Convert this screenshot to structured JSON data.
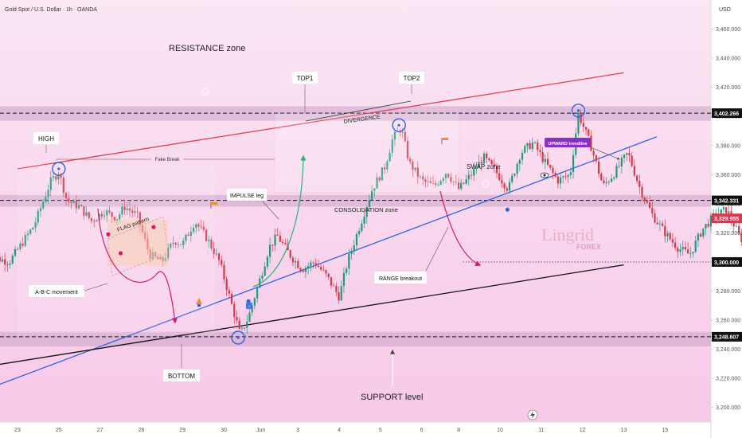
{
  "header": {
    "symbol_title": "Gold Spot / U.S. Dollar · 1h · OANDA",
    "currency": "USD"
  },
  "watermark": {
    "brand": "Lingrid",
    "sub": "FOREX"
  },
  "annotations": {
    "resistance_zone": "RESISTANCE zone",
    "support_level": "SUPPORT level",
    "high": "HIGH",
    "bottom": "BOTTOM",
    "top1": "TOP1",
    "top2": "TOP2",
    "fake_break": "Fake Break",
    "divergence": "DIVERGENCE",
    "swap_zone": "SWAP zone",
    "impulse_leg": "IMPULSE leg",
    "consolidation_zone": "CONSOLIDATION zone",
    "flag_pattern": "FLAG pattern",
    "abc_movement": "A-B-C movement",
    "range_breakout": "RANGE breakout",
    "upward_trendline": "UPWARD trendline"
  },
  "colors": {
    "background_top": "#fbe6f4",
    "background_bottom": "#f7c9e8",
    "zone_band": "#caa2c9",
    "bullish": "#1f9a79",
    "bearish": "#d23a48",
    "resistance_line": "#e23a4e",
    "upward_trendline": "#2f63e0",
    "support_line": "#111111",
    "marker_circle": "#2f63e0",
    "projection": "#37c9e0",
    "arc_pink": "#d8186a",
    "arc_green": "#2cb07c",
    "label_bg": "#ffffff",
    "trendline_tag_bg": "#8a2fc4",
    "price_tag_dark": "#111111",
    "price_tag_red": "#e0354f"
  },
  "chart_data": {
    "type": "candlestick",
    "title": "Gold Spot / U.S. Dollar · 1h · OANDA",
    "y_unit": "USD",
    "ylim": [
      3190,
      3480
    ],
    "y_ticks": [
      3200.0,
      3220.0,
      3240.0,
      3260.0,
      3280.0,
      3300.0,
      3320.0,
      3340.0,
      3360.0,
      3380.0,
      3400.0,
      3420.0,
      3440.0,
      3460.0
    ],
    "y_tick_labels": [
      "3,200.000",
      "3,220.000",
      "3,240.000",
      "3,260.000",
      "3,280.000",
      "3,300.000",
      "3,320.000",
      "3,340.000",
      "3,360.000",
      "3,380.000",
      "3,400.000",
      "3,420.000",
      "3,440.000",
      "3,460.000"
    ],
    "x_ticks": [
      "23",
      "25",
      "27",
      "28",
      "29",
      "30",
      "Jun",
      "3",
      "4",
      "5",
      "6",
      "8",
      "10",
      "11",
      "12",
      "13",
      "15"
    ],
    "x_tick_pos": [
      0.0,
      1.0,
      2.0,
      3.0,
      4.0,
      5.0,
      5.9,
      6.8,
      7.8,
      8.8,
      9.8,
      10.7,
      11.7,
      12.7,
      13.7,
      14.7,
      15.7
    ],
    "price_tags": [
      {
        "value": 3402.266,
        "label": "3,402.266",
        "style": "dark"
      },
      {
        "value": 3342.331,
        "label": "3,342.331",
        "style": "dark"
      },
      {
        "value": 3329.955,
        "label": "3,329.955",
        "style": "red"
      },
      {
        "value": 3300.0,
        "label": "3,300.000",
        "style": "dark"
      },
      {
        "value": 3248.607,
        "label": "3,248.607",
        "style": "dark"
      }
    ],
    "zones": [
      {
        "name": "resistance-band",
        "from": 3397,
        "to": 3407
      },
      {
        "name": "swap-band",
        "from": 3338,
        "to": 3346
      },
      {
        "name": "support-band",
        "from": 3242,
        "to": 3252
      }
    ],
    "dashed_levels": [
      3402.266,
      3342.331,
      3248.607
    ],
    "dotted_levels": [
      {
        "value": 3300.0,
        "from_t": 10.8,
        "to_t": 14.5
      }
    ],
    "trendlines": [
      {
        "name": "resistance-line",
        "from": [
          0.0,
          3364
        ],
        "to": [
          14.7,
          3430
        ]
      },
      {
        "name": "upward-trendline",
        "from": [
          -0.8,
          3212
        ],
        "to": [
          15.5,
          3386
        ]
      },
      {
        "name": "support-line",
        "from": [
          -0.8,
          3228
        ],
        "to": [
          14.7,
          3298
        ]
      }
    ],
    "price_path": [
      [
        -0.8,
        3305
      ],
      [
        -0.2,
        3300
      ],
      [
        0.4,
        3325
      ],
      [
        0.8,
        3355
      ],
      [
        1.0,
        3362
      ],
      [
        1.2,
        3342
      ],
      [
        1.5,
        3338
      ],
      [
        1.8,
        3328
      ],
      [
        2.1,
        3335
      ],
      [
        2.4,
        3330
      ],
      [
        2.6,
        3338
      ],
      [
        2.9,
        3332
      ],
      [
        3.2,
        3305
      ],
      [
        3.5,
        3300
      ],
      [
        3.8,
        3315
      ],
      [
        4.0,
        3312
      ],
      [
        4.3,
        3328
      ],
      [
        4.6,
        3316
      ],
      [
        4.9,
        3300
      ],
      [
        5.2,
        3270
      ],
      [
        5.4,
        3250
      ],
      [
        5.6,
        3262
      ],
      [
        5.9,
        3290
      ],
      [
        6.1,
        3310
      ],
      [
        6.3,
        3318
      ],
      [
        6.6,
        3305
      ],
      [
        6.9,
        3295
      ],
      [
        7.2,
        3300
      ],
      [
        7.5,
        3290
      ],
      [
        7.8,
        3276
      ],
      [
        8.0,
        3300
      ],
      [
        8.3,
        3325
      ],
      [
        8.6,
        3350
      ],
      [
        8.9,
        3365
      ],
      [
        9.1,
        3385
      ],
      [
        9.3,
        3392
      ],
      [
        9.5,
        3368
      ],
      [
        9.8,
        3356
      ],
      [
        10.1,
        3352
      ],
      [
        10.4,
        3362
      ],
      [
        10.7,
        3350
      ],
      [
        11.0,
        3360
      ],
      [
        11.3,
        3372
      ],
      [
        11.6,
        3362
      ],
      [
        11.9,
        3350
      ],
      [
        12.2,
        3375
      ],
      [
        12.5,
        3382
      ],
      [
        12.8,
        3368
      ],
      [
        13.1,
        3356
      ],
      [
        13.4,
        3360
      ],
      [
        13.6,
        3402
      ],
      [
        13.9,
        3380
      ],
      [
        14.2,
        3352
      ],
      [
        14.5,
        3362
      ],
      [
        14.8,
        3375
      ],
      [
        15.1,
        3350
      ],
      [
        15.4,
        3332
      ],
      [
        15.7,
        3320
      ],
      [
        16.0,
        3310
      ],
      [
        16.3,
        3305
      ],
      [
        16.6,
        3322
      ],
      [
        16.9,
        3332
      ],
      [
        17.2,
        3336
      ],
      [
        17.5,
        3318
      ],
      [
        17.8,
        3306
      ],
      [
        18.0,
        3320
      ],
      [
        18.2,
        3330
      ],
      [
        18.4,
        3334
      ]
    ],
    "projection_path": [
      [
        18.4,
        3334
      ],
      [
        18.9,
        3348
      ],
      [
        19.3,
        3328
      ],
      [
        19.7,
        3338
      ],
      [
        20.1,
        3302
      ]
    ],
    "markers": [
      {
        "name": "high-marker",
        "t": 1.0,
        "v": 3364
      },
      {
        "name": "bottom-marker",
        "t": 5.35,
        "v": 3248
      },
      {
        "name": "top1-marker",
        "t": 9.25,
        "v": 3394
      },
      {
        "name": "top2-marker",
        "t": 13.6,
        "v": 3404
      }
    ]
  }
}
